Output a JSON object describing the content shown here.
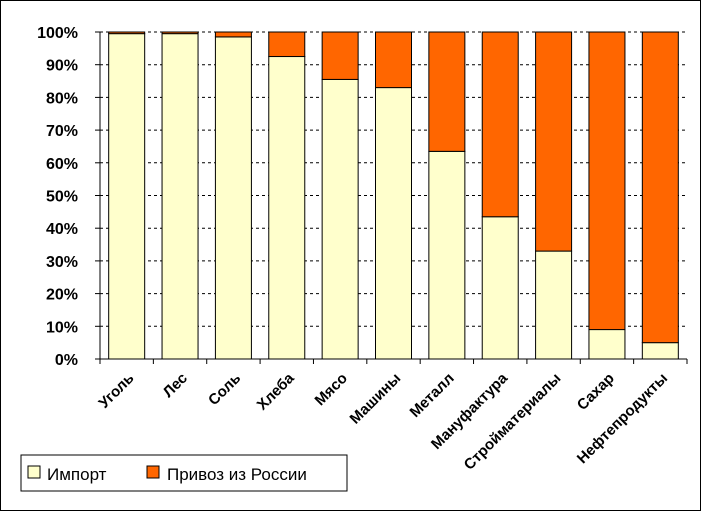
{
  "chart_data": {
    "type": "bar",
    "stacked": true,
    "percent": true,
    "categories": [
      "Уголь",
      "Лес",
      "Соль",
      "Хлеба",
      "Мясо",
      "Машины",
      "Металл",
      "Мануфактура",
      "Стройматериалы",
      "Сахар",
      "Нефтепродукты"
    ],
    "series": [
      {
        "name": "Импорт",
        "color": "#ffffcc",
        "values": [
          99.5,
          99.5,
          98.5,
          92.5,
          85.5,
          83,
          63.5,
          43.5,
          33,
          9,
          5
        ]
      },
      {
        "name": "Привоз из России",
        "color": "#ff6600",
        "values": [
          0.5,
          0.5,
          1.5,
          7.5,
          14.5,
          17,
          36.5,
          56.5,
          67,
          91,
          95
        ]
      }
    ],
    "ylim": [
      0,
      100
    ],
    "yticks": [
      "0%",
      "10%",
      "20%",
      "30%",
      "40%",
      "50%",
      "60%",
      "70%",
      "80%",
      "90%",
      "100%"
    ],
    "grid": true,
    "legend_position": "bottom-left"
  }
}
